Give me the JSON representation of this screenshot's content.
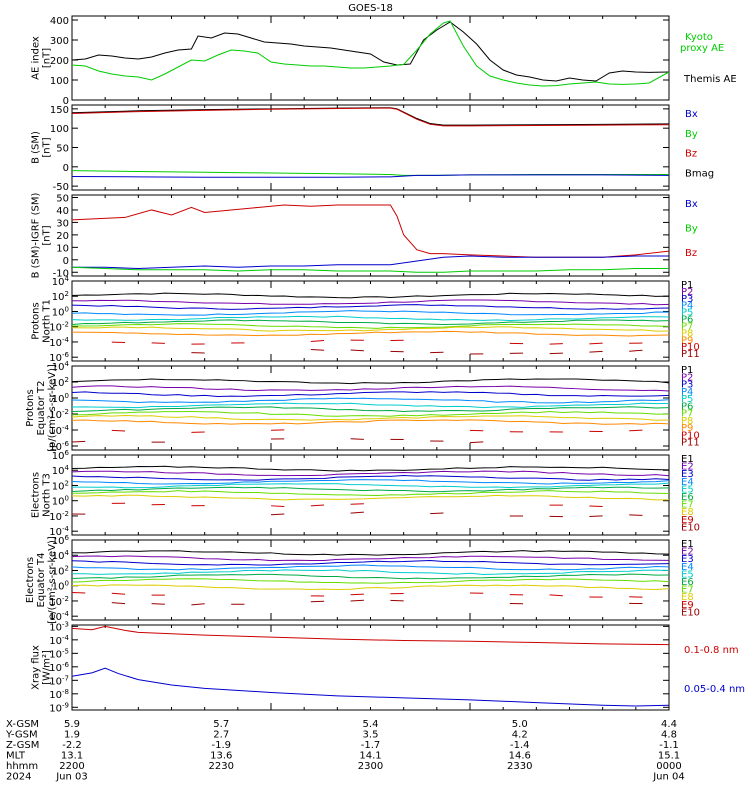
{
  "title": "GOES-18",
  "chart_data": [
    {
      "type": "line",
      "id": "ae",
      "ylabel": [
        "AE index",
        "[nT]"
      ],
      "yticks": [
        "400",
        "300",
        "200",
        "100",
        "0"
      ],
      "ylim": [
        0,
        420
      ],
      "scale": "linear",
      "legend": [
        {
          "label": "Kyoto",
          "color": "#00cc00"
        },
        {
          "label": "proxy AE",
          "color": "#00cc00"
        },
        {
          "label": "Themis AE",
          "color": "#000000"
        }
      ],
      "series": [
        {
          "name": "Themis AE",
          "color": "#000000",
          "x": [
            0,
            2,
            4,
            6,
            8,
            10,
            12,
            14,
            16,
            18,
            19,
            21,
            23,
            25,
            27,
            29,
            31,
            33,
            35,
            37,
            39,
            41,
            43,
            45,
            47,
            49,
            51,
            53,
            55,
            57,
            59,
            61,
            63,
            65,
            67,
            69,
            71,
            73,
            75,
            77,
            79,
            81,
            83,
            85,
            87,
            90
          ],
          "values": [
            200,
            205,
            225,
            220,
            210,
            205,
            215,
            235,
            250,
            255,
            320,
            310,
            335,
            330,
            310,
            290,
            285,
            280,
            270,
            265,
            260,
            250,
            240,
            230,
            190,
            175,
            180,
            300,
            350,
            390,
            340,
            280,
            200,
            150,
            125,
            115,
            100,
            95,
            110,
            100,
            95,
            135,
            145,
            140,
            138,
            140
          ]
        },
        {
          "name": "Kyoto proxy AE",
          "color": "#00cc00",
          "x": [
            0,
            2,
            4,
            6,
            8,
            10,
            12,
            14,
            16,
            18,
            20,
            22,
            24,
            26,
            28,
            30,
            32,
            34,
            36,
            38,
            40,
            42,
            44,
            46,
            48,
            50,
            52,
            54,
            56,
            57,
            59,
            61,
            63,
            65,
            67,
            69,
            71,
            73,
            75,
            77,
            79,
            81,
            83,
            85,
            87,
            90
          ],
          "values": [
            175,
            170,
            145,
            130,
            120,
            115,
            100,
            130,
            165,
            200,
            195,
            225,
            250,
            245,
            235,
            190,
            180,
            175,
            170,
            170,
            165,
            160,
            160,
            165,
            170,
            178,
            250,
            330,
            385,
            395,
            270,
            170,
            120,
            100,
            85,
            75,
            70,
            72,
            80,
            85,
            90,
            80,
            78,
            80,
            85,
            140
          ]
        }
      ]
    },
    {
      "type": "line",
      "id": "bsm",
      "ylabel": [
        "B (SM)",
        "[nT]"
      ],
      "yticks": [
        "150",
        "100",
        "50",
        "0",
        "-50"
      ],
      "ylim": [
        -60,
        160
      ],
      "scale": "linear",
      "legend": [
        {
          "label": "Bx",
          "color": "#0000cc"
        },
        {
          "label": "By",
          "color": "#00cc00"
        },
        {
          "label": "Bz",
          "color": "#cc0000"
        },
        {
          "label": "Bmag",
          "color": "#000000"
        }
      ],
      "series": [
        {
          "name": "Bmag",
          "color": "#000000",
          "x": [
            0,
            10,
            20,
            30,
            40,
            48,
            49,
            52,
            54,
            56,
            60,
            70,
            80,
            90
          ],
          "values": [
            140,
            145,
            148,
            150,
            152,
            153,
            150,
            125,
            112,
            108,
            108,
            109,
            110,
            111
          ]
        },
        {
          "name": "Bz",
          "color": "#cc0000",
          "x": [
            0,
            10,
            20,
            30,
            40,
            48,
            49,
            52,
            54,
            56,
            60,
            70,
            80,
            90
          ],
          "values": [
            138,
            143,
            146,
            149,
            151,
            152,
            149,
            123,
            110,
            106,
            106,
            107,
            108,
            109
          ]
        },
        {
          "name": "By",
          "color": "#00cc00",
          "x": [
            0,
            10,
            20,
            30,
            40,
            48,
            50,
            55,
            60,
            70,
            80,
            90
          ],
          "values": [
            -10,
            -12,
            -14,
            -16,
            -18,
            -20,
            -22,
            -22,
            -21,
            -20,
            -20,
            -20
          ]
        },
        {
          "name": "Bx",
          "color": "#0000cc",
          "x": [
            0,
            10,
            20,
            30,
            40,
            48,
            52,
            55,
            60,
            70,
            80,
            90
          ],
          "values": [
            -25,
            -26,
            -27,
            -27,
            -27,
            -26,
            -22,
            -22,
            -21,
            -21,
            -21,
            -22
          ]
        }
      ]
    },
    {
      "type": "line",
      "id": "digrf",
      "ylabel": [
        "B (SM)-IGRF (SM)",
        "[nT]"
      ],
      "yticks": [
        "50",
        "40",
        "30",
        "20",
        "10",
        "0",
        "-10"
      ],
      "ylim": [
        -13,
        52
      ],
      "scale": "linear",
      "legend": [
        {
          "label": "Bx",
          "color": "#0000cc"
        },
        {
          "label": "By",
          "color": "#00cc00"
        },
        {
          "label": "Bz",
          "color": "#cc0000"
        }
      ],
      "series": [
        {
          "name": "Bz",
          "color": "#cc0000",
          "x": [
            0,
            4,
            8,
            12,
            15,
            18,
            20,
            24,
            28,
            32,
            36,
            40,
            44,
            48,
            49,
            50,
            52,
            54,
            56,
            60,
            65,
            70,
            75,
            80,
            85,
            90
          ],
          "values": [
            32,
            33,
            34,
            40,
            36,
            42,
            38,
            40,
            42,
            44,
            43,
            44,
            44,
            44,
            35,
            20,
            8,
            5,
            5,
            4,
            3,
            2,
            2,
            2,
            4,
            7
          ]
        },
        {
          "name": "Bx",
          "color": "#0000cc",
          "x": [
            0,
            5,
            10,
            15,
            20,
            25,
            30,
            35,
            40,
            45,
            48,
            52,
            56,
            60,
            65,
            70,
            75,
            80,
            85,
            90
          ],
          "values": [
            -6,
            -6,
            -7,
            -6,
            -5,
            -6,
            -5,
            -5,
            -4,
            -4,
            -4,
            -1,
            2,
            3,
            2,
            2,
            2,
            2,
            3,
            3
          ]
        },
        {
          "name": "By",
          "color": "#00cc00",
          "x": [
            0,
            5,
            10,
            15,
            20,
            25,
            30,
            35,
            40,
            45,
            48,
            52,
            56,
            60,
            65,
            70,
            75,
            80,
            85,
            90
          ],
          "values": [
            -6,
            -7,
            -8,
            -8,
            -8,
            -9,
            -8,
            -8,
            -9,
            -9,
            -9,
            -10,
            -10,
            -9,
            -9,
            -9,
            -8,
            -8,
            -7,
            -7
          ]
        }
      ]
    },
    {
      "type": "line",
      "id": "p_north",
      "ylabel": [
        "Protons",
        "North T1"
      ],
      "yticks": [
        "10^4",
        "10^2",
        "10^0",
        "10^-2",
        "10^-4",
        "10^-6"
      ],
      "ylim": [
        -6.5,
        4
      ],
      "scale": "log",
      "legend": [
        {
          "label": "P1",
          "color": "#000000"
        },
        {
          "label": "P2",
          "color": "#7700aa"
        },
        {
          "label": "P3",
          "color": "#0000cc"
        },
        {
          "label": "P4",
          "color": "#0088ff"
        },
        {
          "label": "P5",
          "color": "#00cccc"
        },
        {
          "label": "P6",
          "color": "#00aa44"
        },
        {
          "label": "P7",
          "color": "#66dd00"
        },
        {
          "label": "P8",
          "color": "#ddcc00"
        },
        {
          "label": "P9",
          "color": "#ff8800"
        },
        {
          "label": "P10",
          "color": "#cc0000"
        },
        {
          "label": "P11",
          "color": "#990000"
        }
      ],
      "levels": [
        2.1,
        1.2,
        0.6,
        -0.2,
        -0.9,
        -1.4,
        -1.9,
        -2.3,
        -2.9,
        -4.0,
        -5.3
      ]
    },
    {
      "type": "line",
      "id": "p_eq",
      "ylabel": [
        "Protons",
        "Equator T2",
        "[p/(cm²-s-sr-keV)]"
      ],
      "yticks": [
        "10^4",
        "10^2",
        "10^0",
        "10^-2",
        "10^-4",
        "10^-6"
      ],
      "ylim": [
        -6.5,
        4
      ],
      "scale": "log",
      "legend": [
        {
          "label": "P1",
          "color": "#000000"
        },
        {
          "label": "P2",
          "color": "#7700aa"
        },
        {
          "label": "P3",
          "color": "#0000cc"
        },
        {
          "label": "P4",
          "color": "#0088ff"
        },
        {
          "label": "P5",
          "color": "#00cccc"
        },
        {
          "label": "P6",
          "color": "#00aa44"
        },
        {
          "label": "P7",
          "color": "#66dd00"
        },
        {
          "label": "P8",
          "color": "#ddcc00"
        },
        {
          "label": "P9",
          "color": "#ff8800"
        },
        {
          "label": "P10",
          "color": "#cc0000"
        },
        {
          "label": "P11",
          "color": "#990000"
        }
      ],
      "levels": [
        2.1,
        1.2,
        0.5,
        -0.3,
        -0.9,
        -1.4,
        -2.0,
        -2.5,
        -3.0,
        -4.0,
        -5.3
      ]
    },
    {
      "type": "line",
      "id": "e_north",
      "ylabel": [
        "Electrons",
        "North T3"
      ],
      "yticks": [
        "10^6",
        "10^4",
        "10^2",
        "10^0",
        "10^-2",
        "10^-4"
      ],
      "ylim": [
        -4.5,
        6
      ],
      "scale": "log",
      "legend": [
        {
          "label": "E1",
          "color": "#000000"
        },
        {
          "label": "E2",
          "color": "#7700aa"
        },
        {
          "label": "E3",
          "color": "#0000cc"
        },
        {
          "label": "E4",
          "color": "#0088ff"
        },
        {
          "label": "E5",
          "color": "#00cccc"
        },
        {
          "label": "E6",
          "color": "#00aa44"
        },
        {
          "label": "E7",
          "color": "#66dd00"
        },
        {
          "label": "E8",
          "color": "#ddcc00"
        },
        {
          "label": "E9",
          "color": "#cc0000"
        },
        {
          "label": "E10",
          "color": "#990000"
        }
      ],
      "levels": [
        4.2,
        3.6,
        3.0,
        2.5,
        2.0,
        1.5,
        1.0,
        0.4,
        -0.5,
        -1.8
      ]
    },
    {
      "type": "line",
      "id": "e_eq",
      "ylabel": [
        "Electrons",
        "Equator T4",
        "[e/(cm²-s-sr-keV)]"
      ],
      "yticks": [
        "10^6",
        "10^4",
        "10^2",
        "10^0",
        "10^-2",
        "10^-4"
      ],
      "ylim": [
        -4.5,
        6
      ],
      "scale": "log",
      "legend": [
        {
          "label": "E1",
          "color": "#000000"
        },
        {
          "label": "E2",
          "color": "#7700aa"
        },
        {
          "label": "E3",
          "color": "#0000cc"
        },
        {
          "label": "E4",
          "color": "#0088ff"
        },
        {
          "label": "E5",
          "color": "#00cccc"
        },
        {
          "label": "E6",
          "color": "#00aa44"
        },
        {
          "label": "E7",
          "color": "#66dd00"
        },
        {
          "label": "E8",
          "color": "#ddcc00"
        },
        {
          "label": "E9",
          "color": "#cc0000"
        },
        {
          "label": "E10",
          "color": "#990000"
        }
      ],
      "levels": [
        4.3,
        3.6,
        3.0,
        2.4,
        1.8,
        1.2,
        0.6,
        -0.2,
        -1.2,
        -2.2
      ]
    },
    {
      "type": "line",
      "id": "xray",
      "ylabel": [
        "Xray flux",
        "[W/m²]"
      ],
      "yticks": [
        "10^-3",
        "10^-4",
        "10^-5",
        "10^-6",
        "10^-7",
        "10^-8",
        "10^-9"
      ],
      "ylim": [
        -9.2,
        -2.9
      ],
      "scale": "log",
      "legend": [
        {
          "label": "0.1-0.8 nm",
          "color": "#cc0000"
        },
        {
          "label": "0.05-0.4 nm",
          "color": "#0000cc"
        }
      ],
      "series": [
        {
          "name": "0.1-0.8 nm",
          "color": "#cc0000",
          "x": [
            0,
            3,
            5,
            8,
            10,
            15,
            20,
            30,
            40,
            50,
            60,
            70,
            80,
            90
          ],
          "values": [
            -3.15,
            -3.25,
            -3.0,
            -3.3,
            -3.45,
            -3.55,
            -3.65,
            -3.8,
            -3.95,
            -4.05,
            -4.1,
            -4.2,
            -4.3,
            -4.35
          ]
        },
        {
          "name": "0.05-0.4 nm",
          "color": "#0000cc",
          "x": [
            0,
            3,
            5,
            7,
            10,
            15,
            20,
            30,
            40,
            50,
            60,
            70,
            80,
            85,
            90
          ],
          "values": [
            -6.7,
            -6.45,
            -6.1,
            -6.5,
            -6.95,
            -7.35,
            -7.6,
            -7.9,
            -8.15,
            -8.3,
            -8.45,
            -8.65,
            -8.85,
            -8.9,
            -8.85
          ]
        }
      ]
    }
  ],
  "x_axis": {
    "rows": [
      {
        "label": "X-GSM",
        "values": [
          "5.9",
          "5.7",
          "5.4",
          "5.0",
          "4.4"
        ]
      },
      {
        "label": "Y-GSM",
        "values": [
          "1.9",
          "2.7",
          "3.5",
          "4.2",
          "4.8"
        ]
      },
      {
        "label": "Z-GSM",
        "values": [
          "-2.2",
          "-1.9",
          "-1.7",
          "-1.4",
          "-1.1"
        ]
      },
      {
        "label": "MLT",
        "values": [
          "13.1",
          "13.6",
          "14.1",
          "14.6",
          "15.1"
        ]
      },
      {
        "label": "hhmm",
        "values": [
          "2200",
          "2230",
          "2300",
          "2330",
          "0000"
        ]
      },
      {
        "label": "2024",
        "values": [
          "Jun 03",
          "",
          "",
          "",
          "Jun 04"
        ]
      }
    ]
  }
}
